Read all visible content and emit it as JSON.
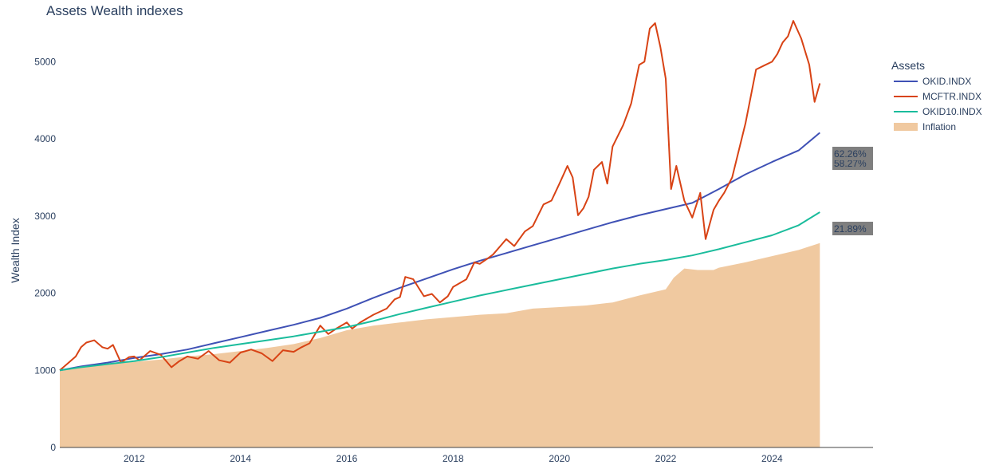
{
  "title": "Assets Wealth indexes",
  "chart_data": {
    "type": "line",
    "title": "Assets Wealth indexes",
    "xlabel": "",
    "ylabel": "Wealth Index",
    "xlim": [
      2010.6,
      2025.9
    ],
    "ylim": [
      0,
      5800
    ],
    "x_ticks": [
      2012,
      2014,
      2016,
      2018,
      2020,
      2022,
      2024
    ],
    "y_ticks": [
      0,
      1000,
      2000,
      3000,
      4000,
      5000
    ],
    "grid": false,
    "legend": {
      "title": "Assets",
      "placement": "right"
    },
    "series": [
      {
        "name": "OKID.INDX",
        "type": "line",
        "color": "#3f51b5",
        "end_label": "62.26%",
        "end_label_bg": "#7f7f7f",
        "x": [
          2010.6,
          2011.0,
          2011.5,
          2012.0,
          2012.5,
          2013.0,
          2013.5,
          2014.0,
          2014.5,
          2015.0,
          2015.5,
          2016.0,
          2016.5,
          2017.0,
          2017.5,
          2018.0,
          2018.5,
          2019.0,
          2019.5,
          2020.0,
          2020.5,
          2021.0,
          2021.5,
          2022.0,
          2022.5,
          2023.0,
          2023.5,
          2024.0,
          2024.5,
          2024.9
        ],
        "y": [
          1000,
          1050,
          1100,
          1160,
          1210,
          1270,
          1350,
          1430,
          1510,
          1590,
          1680,
          1800,
          1940,
          2070,
          2190,
          2310,
          2420,
          2520,
          2620,
          2720,
          2820,
          2920,
          3010,
          3090,
          3170,
          3350,
          3540,
          3700,
          3850,
          4080
        ]
      },
      {
        "name": "MCFTR.INDX",
        "type": "line",
        "color": "#d84315",
        "end_label": "58.27%",
        "end_label_bg": "#7f7f7f",
        "x": [
          2010.6,
          2010.7,
          2010.8,
          2010.9,
          2011.0,
          2011.1,
          2011.25,
          2011.4,
          2011.5,
          2011.6,
          2011.75,
          2011.9,
          2012.0,
          2012.1,
          2012.3,
          2012.5,
          2012.7,
          2012.85,
          2013.0,
          2013.2,
          2013.4,
          2013.6,
          2013.8,
          2014.0,
          2014.2,
          2014.4,
          2014.6,
          2014.8,
          2015.0,
          2015.15,
          2015.3,
          2015.5,
          2015.65,
          2015.8,
          2016.0,
          2016.1,
          2016.25,
          2016.5,
          2016.75,
          2016.9,
          2017.0,
          2017.1,
          2017.25,
          2017.45,
          2017.6,
          2017.75,
          2017.9,
          2018.0,
          2018.25,
          2018.4,
          2018.5,
          2018.65,
          2018.75,
          2018.9,
          2019.0,
          2019.15,
          2019.35,
          2019.5,
          2019.7,
          2019.85,
          2020.0,
          2020.15,
          2020.25,
          2020.35,
          2020.45,
          2020.55,
          2020.65,
          2020.8,
          2020.9,
          2021.0,
          2021.2,
          2021.35,
          2021.5,
          2021.6,
          2021.7,
          2021.8,
          2021.9,
          2022.0,
          2022.1,
          2022.2,
          2022.35,
          2022.5,
          2022.65,
          2022.75,
          2022.9,
          2023.0,
          2023.1,
          2023.25,
          2023.5,
          2023.7,
          2023.85,
          2024.0,
          2024.1,
          2024.2,
          2024.3,
          2024.4,
          2024.55,
          2024.7,
          2024.8,
          2024.9
        ],
        "y": [
          1000,
          1060,
          1120,
          1180,
          1300,
          1360,
          1390,
          1300,
          1280,
          1330,
          1100,
          1170,
          1180,
          1130,
          1250,
          1200,
          1040,
          1120,
          1180,
          1150,
          1250,
          1130,
          1100,
          1230,
          1270,
          1220,
          1120,
          1260,
          1240,
          1300,
          1350,
          1580,
          1470,
          1540,
          1620,
          1540,
          1620,
          1720,
          1800,
          1920,
          1950,
          2210,
          2180,
          1960,
          1990,
          1880,
          1960,
          2080,
          2180,
          2400,
          2380,
          2450,
          2500,
          2620,
          2700,
          2610,
          2800,
          2870,
          3150,
          3200,
          3420,
          3650,
          3500,
          3010,
          3100,
          3250,
          3600,
          3700,
          3420,
          3900,
          4180,
          4460,
          4960,
          5000,
          5430,
          5500,
          5190,
          4780,
          3350,
          3650,
          3200,
          2980,
          3300,
          2700,
          3080,
          3200,
          3300,
          3500,
          4200,
          4900,
          4950,
          5000,
          5100,
          5250,
          5330,
          5530,
          5300,
          4960,
          4480,
          4720
        ]
      },
      {
        "name": "OKID10.INDX",
        "type": "line",
        "color": "#1abc9c",
        "end_label": "21.89%",
        "end_label_bg": "#7f7f7f",
        "x": [
          2010.6,
          2011.0,
          2011.5,
          2012.0,
          2012.5,
          2013.0,
          2013.5,
          2014.0,
          2014.5,
          2015.0,
          2015.5,
          2016.0,
          2016.5,
          2017.0,
          2017.5,
          2018.0,
          2018.5,
          2019.0,
          2019.5,
          2020.0,
          2020.5,
          2021.0,
          2021.5,
          2022.0,
          2022.5,
          2023.0,
          2023.5,
          2024.0,
          2024.5,
          2024.9
        ],
        "y": [
          1000,
          1040,
          1080,
          1120,
          1170,
          1230,
          1290,
          1340,
          1390,
          1440,
          1500,
          1560,
          1640,
          1730,
          1810,
          1890,
          1970,
          2040,
          2110,
          2180,
          2250,
          2320,
          2380,
          2430,
          2490,
          2570,
          2660,
          2750,
          2880,
          3050
        ]
      },
      {
        "name": "Inflation",
        "type": "area",
        "color": "#f0c9a0",
        "x": [
          2010.6,
          2011.0,
          2011.5,
          2012.0,
          2012.5,
          2013.0,
          2013.5,
          2014.0,
          2014.5,
          2015.0,
          2015.5,
          2016.0,
          2016.5,
          2017.0,
          2017.5,
          2018.0,
          2018.5,
          2019.0,
          2019.5,
          2020.0,
          2020.5,
          2021.0,
          2021.5,
          2022.0,
          2022.15,
          2022.35,
          2022.6,
          2022.9,
          2023.0,
          2023.5,
          2024.0,
          2024.5,
          2024.9
        ],
        "y": [
          1000,
          1040,
          1080,
          1110,
          1140,
          1180,
          1210,
          1250,
          1290,
          1340,
          1420,
          1520,
          1580,
          1620,
          1660,
          1690,
          1720,
          1740,
          1800,
          1820,
          1840,
          1880,
          1970,
          2050,
          2200,
          2320,
          2300,
          2300,
          2330,
          2400,
          2480,
          2560,
          2650
        ]
      }
    ]
  }
}
